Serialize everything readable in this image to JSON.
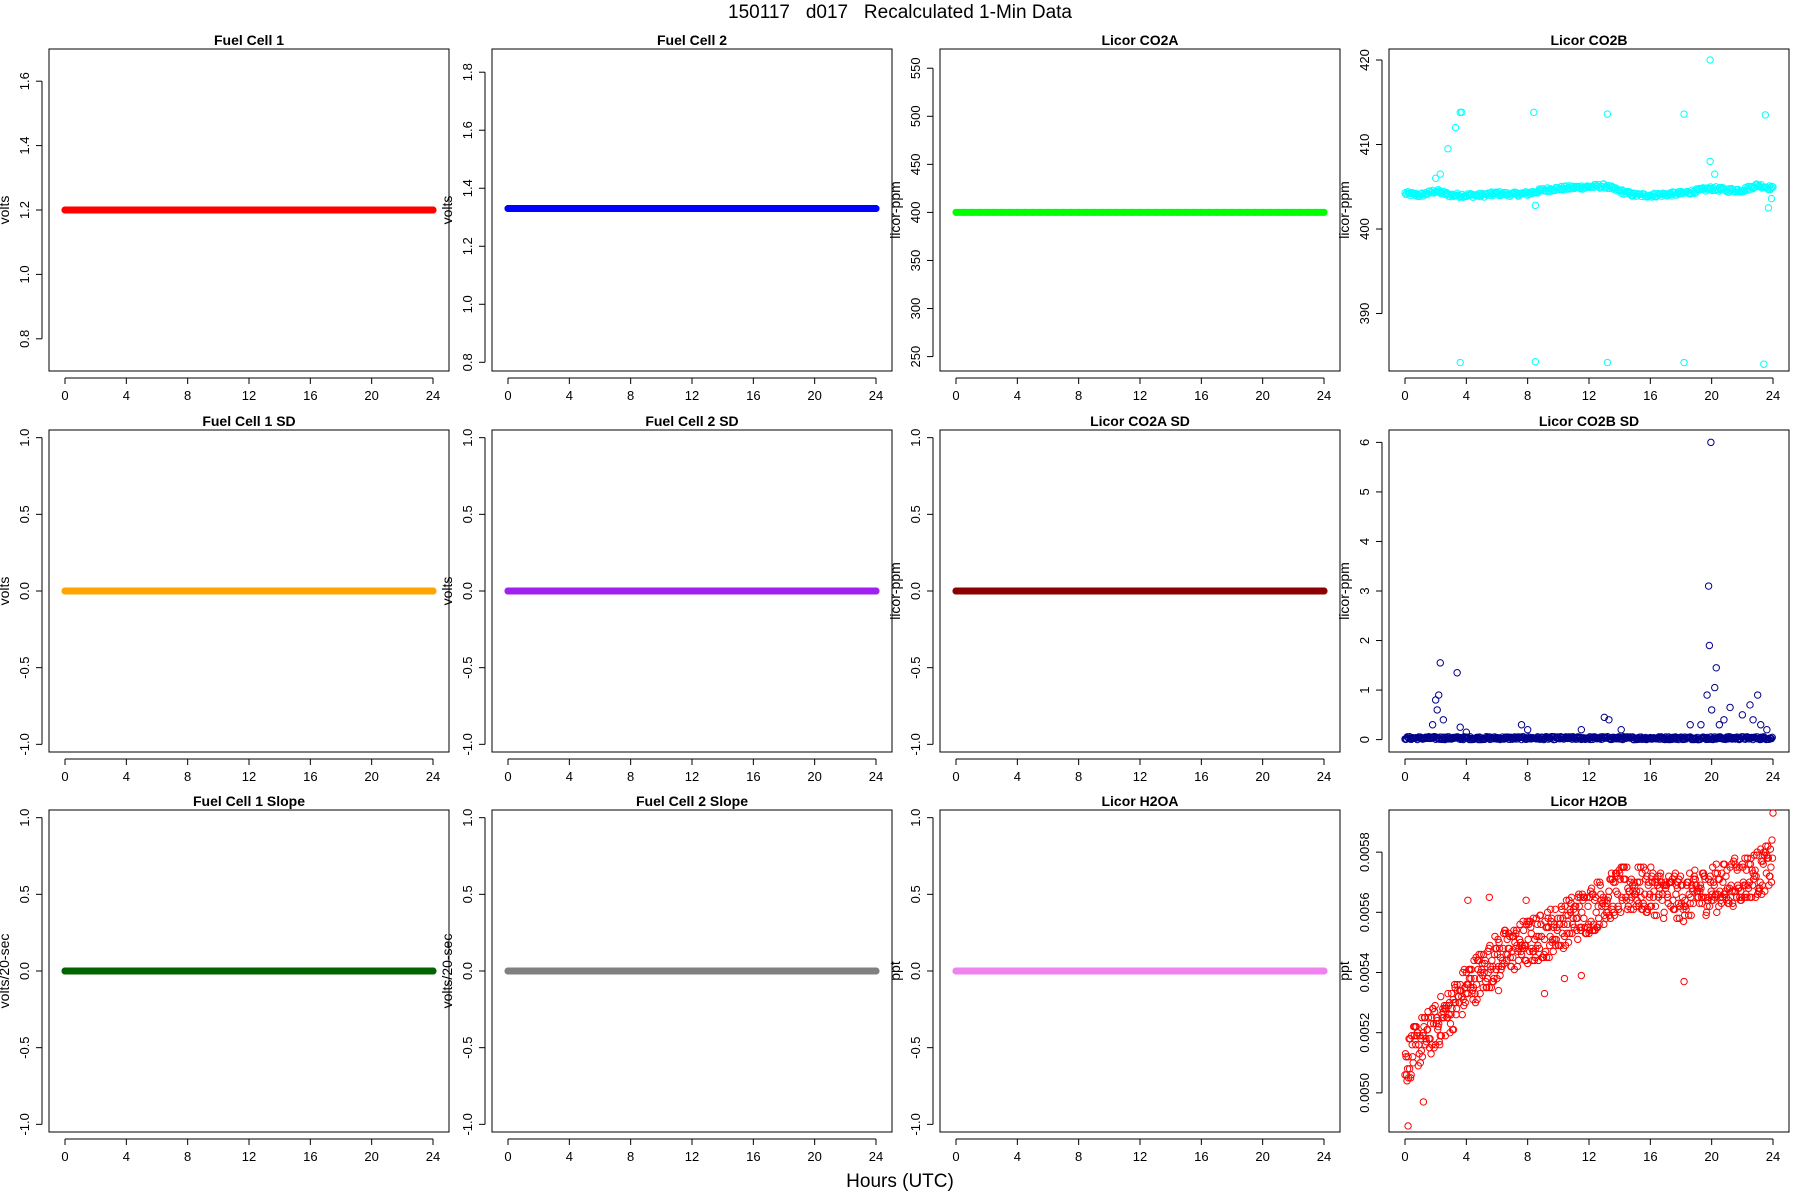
{
  "figure": {
    "title": "150117   d017   Recalculated 1-Min Data",
    "x_axis_title": "Hours (UTC)"
  },
  "chart_data": [
    {
      "type": "scatter",
      "title": "Fuel Cell 1",
      "ylabel": "volts",
      "xlim": [
        0,
        24
      ],
      "ylim": [
        0.7,
        1.7
      ],
      "yticks": [
        0.8,
        1.0,
        1.2,
        1.4,
        1.6
      ],
      "xticks": [
        0,
        4,
        8,
        12,
        16,
        20,
        24
      ],
      "color": "#ff0000",
      "marker": "filled-circle",
      "series": [
        {
          "x_range": [
            0,
            24
          ],
          "constant": 1.2
        }
      ]
    },
    {
      "type": "scatter",
      "title": "Fuel Cell 2",
      "ylabel": "volts",
      "xlim": [
        0,
        24
      ],
      "ylim": [
        0.77,
        1.88
      ],
      "yticks": [
        0.8,
        1.0,
        1.2,
        1.4,
        1.6,
        1.8
      ],
      "xticks": [
        0,
        4,
        8,
        12,
        16,
        20,
        24
      ],
      "color": "#0000ff",
      "marker": "filled-circle",
      "series": [
        {
          "x_range": [
            0,
            24
          ],
          "constant": 1.33
        }
      ]
    },
    {
      "type": "scatter",
      "title": "Licor CO2A",
      "ylabel": "licor-ppm",
      "xlim": [
        0,
        24
      ],
      "ylim": [
        235,
        570
      ],
      "yticks": [
        250,
        300,
        350,
        400,
        450,
        500,
        550
      ],
      "xticks": [
        0,
        4,
        8,
        12,
        16,
        20,
        24
      ],
      "color": "#00ff00",
      "marker": "filled-circle",
      "series": [
        {
          "x_range": [
            0,
            24
          ],
          "constant": 400
        }
      ]
    },
    {
      "type": "scatter",
      "title": "Licor CO2B",
      "ylabel": "licor-ppm",
      "xlim": [
        0,
        24
      ],
      "ylim": [
        383.2,
        421.3
      ],
      "yticks": [
        390,
        400,
        410,
        420
      ],
      "xticks": [
        0,
        4,
        8,
        12,
        16,
        20,
        24
      ],
      "color": "#00ffff",
      "marker": "open-circle",
      "series": [
        {
          "baseline": [
            [
              0,
              404.2
            ],
            [
              1,
              404.0
            ],
            [
              2,
              404.5
            ],
            [
              3,
              404.0
            ],
            [
              4,
              404.0
            ],
            [
              5,
              404.0
            ],
            [
              6,
              404.2
            ],
            [
              7,
              404.1
            ],
            [
              8,
              404.2
            ],
            [
              9,
              404.6
            ],
            [
              10,
              404.8
            ],
            [
              11,
              404.9
            ],
            [
              12,
              405.0
            ],
            [
              13,
              405.1
            ],
            [
              14,
              404.5
            ],
            [
              15,
              404.0
            ],
            [
              16,
              404.0
            ],
            [
              17,
              404.1
            ],
            [
              18,
              404.2
            ],
            [
              19,
              404.5
            ],
            [
              20,
              404.8
            ],
            [
              21,
              404.6
            ],
            [
              22,
              404.6
            ],
            [
              23,
              405.2
            ],
            [
              24,
              404.8
            ]
          ],
          "outliers": [
            [
              2.0,
              406.0
            ],
            [
              2.3,
              406.5
            ],
            [
              2.8,
              409.5
            ],
            [
              3.3,
              412.0
            ],
            [
              3.6,
              413.8
            ],
            [
              3.7,
              413.8
            ],
            [
              3.6,
              384.2
            ],
            [
              8.4,
              413.8
            ],
            [
              8.5,
              384.3
            ],
            [
              8.5,
              402.8
            ],
            [
              13.2,
              413.6
            ],
            [
              13.2,
              384.2
            ],
            [
              18.2,
              413.6
            ],
            [
              18.2,
              384.2
            ],
            [
              19.9,
              408.0
            ],
            [
              20.2,
              406.5
            ],
            [
              19.9,
              420.0
            ],
            [
              23.5,
              413.5
            ],
            [
              23.4,
              384.0
            ],
            [
              23.7,
              402.5
            ],
            [
              23.9,
              403.6
            ]
          ]
        }
      ]
    },
    {
      "type": "scatter",
      "title": "Fuel Cell 1 SD",
      "ylabel": "volts",
      "xlim": [
        0,
        24
      ],
      "ylim": [
        -1.05,
        1.05
      ],
      "yticks": [
        -1.0,
        -0.5,
        0.0,
        0.5,
        1.0
      ],
      "xticks": [
        0,
        4,
        8,
        12,
        16,
        20,
        24
      ],
      "color": "#ffa500",
      "marker": "filled-circle",
      "series": [
        {
          "x_range": [
            0,
            24
          ],
          "constant": 0.0
        }
      ]
    },
    {
      "type": "scatter",
      "title": "Fuel Cell 2 SD",
      "ylabel": "volts",
      "xlim": [
        0,
        24
      ],
      "ylim": [
        -1.05,
        1.05
      ],
      "yticks": [
        -1.0,
        -0.5,
        0.0,
        0.5,
        1.0
      ],
      "xticks": [
        0,
        4,
        8,
        12,
        16,
        20,
        24
      ],
      "color": "#a020f0",
      "marker": "filled-circle",
      "series": [
        {
          "x_range": [
            0,
            24
          ],
          "constant": 0.0
        }
      ]
    },
    {
      "type": "scatter",
      "title": "Licor CO2A SD",
      "ylabel": "licor-ppm",
      "xlim": [
        0,
        24
      ],
      "ylim": [
        -1.05,
        1.05
      ],
      "yticks": [
        -1.0,
        -0.5,
        0.0,
        0.5,
        1.0
      ],
      "xticks": [
        0,
        4,
        8,
        12,
        16,
        20,
        24
      ],
      "color": "#8b0000",
      "marker": "filled-circle",
      "series": [
        {
          "x_range": [
            0,
            24
          ],
          "constant": 0.0
        }
      ]
    },
    {
      "type": "scatter",
      "title": "Licor CO2B SD",
      "ylabel": "licor-ppm",
      "xlim": [
        0,
        24
      ],
      "ylim": [
        -0.25,
        6.25
      ],
      "yticks": [
        0,
        1,
        2,
        3,
        4,
        5,
        6
      ],
      "xticks": [
        0,
        4,
        8,
        12,
        16,
        20,
        24
      ],
      "color": "#00008b",
      "marker": "open-circle",
      "series": [
        {
          "baseline": 0.03,
          "outliers": [
            [
              1.8,
              0.3
            ],
            [
              2.0,
              0.8
            ],
            [
              2.1,
              0.6
            ],
            [
              2.2,
              0.9
            ],
            [
              2.3,
              1.55
            ],
            [
              2.5,
              0.4
            ],
            [
              3.4,
              1.35
            ],
            [
              3.6,
              0.25
            ],
            [
              4.0,
              0.15
            ],
            [
              7.6,
              0.3
            ],
            [
              8.0,
              0.2
            ],
            [
              11.5,
              0.2
            ],
            [
              13.0,
              0.45
            ],
            [
              13.3,
              0.4
            ],
            [
              14.1,
              0.2
            ],
            [
              18.6,
              0.3
            ],
            [
              19.3,
              0.3
            ],
            [
              19.7,
              0.9
            ],
            [
              19.8,
              3.1
            ],
            [
              19.85,
              1.9
            ],
            [
              19.95,
              6.0
            ],
            [
              20.0,
              0.6
            ],
            [
              20.2,
              1.05
            ],
            [
              20.3,
              1.45
            ],
            [
              20.5,
              0.3
            ],
            [
              20.8,
              0.4
            ],
            [
              21.2,
              0.65
            ],
            [
              22.0,
              0.5
            ],
            [
              22.5,
              0.7
            ],
            [
              22.7,
              0.4
            ],
            [
              23.0,
              0.9
            ],
            [
              23.2,
              0.3
            ],
            [
              23.6,
              0.2
            ]
          ]
        }
      ]
    },
    {
      "type": "scatter",
      "title": "Fuel Cell 1 Slope",
      "ylabel": "volts/20-sec",
      "xlim": [
        0,
        24
      ],
      "ylim": [
        -1.05,
        1.05
      ],
      "yticks": [
        -1.0,
        -0.5,
        0.0,
        0.5,
        1.0
      ],
      "xticks": [
        0,
        4,
        8,
        12,
        16,
        20,
        24
      ],
      "color": "#006400",
      "marker": "filled-circle",
      "series": [
        {
          "x_range": [
            0,
            24
          ],
          "constant": 0.0
        }
      ]
    },
    {
      "type": "scatter",
      "title": "Fuel Cell 2 Slope",
      "ylabel": "volts/20-sec",
      "xlim": [
        0,
        24
      ],
      "ylim": [
        -1.05,
        1.05
      ],
      "yticks": [
        -1.0,
        -0.5,
        0.0,
        0.5,
        1.0
      ],
      "xticks": [
        0,
        4,
        8,
        12,
        16,
        20,
        24
      ],
      "color": "#808080",
      "marker": "filled-circle",
      "series": [
        {
          "x_range": [
            0,
            24
          ],
          "constant": 0.0
        }
      ]
    },
    {
      "type": "scatter",
      "title": "Licor H2OA",
      "ylabel": "ppt",
      "xlim": [
        0,
        24
      ],
      "ylim": [
        -1.05,
        1.05
      ],
      "yticks": [
        -1.0,
        -0.5,
        0.0,
        0.5,
        1.0
      ],
      "xticks": [
        0,
        4,
        8,
        12,
        16,
        20,
        24
      ],
      "color": "#ee82ee",
      "marker": "filled-circle",
      "series": [
        {
          "x_range": [
            0,
            24
          ],
          "constant": 0.0
        }
      ]
    },
    {
      "type": "scatter",
      "title": "Licor H2OB",
      "ylabel": "ppt",
      "xlim": [
        0,
        24
      ],
      "ylim": [
        0.00487,
        0.00594
      ],
      "yticks": [
        0.005,
        0.0052,
        0.0054,
        0.0056,
        0.0058
      ],
      "xticks": [
        0,
        4,
        8,
        12,
        16,
        20,
        24
      ],
      "color": "#ff0000",
      "marker": "open-circle",
      "series": [
        {
          "trend": [
            [
              0,
              0.0051
            ],
            [
              1,
              0.00517
            ],
            [
              2,
              0.00522
            ],
            [
              3,
              0.00528
            ],
            [
              4,
              0.00535
            ],
            [
              5,
              0.0054
            ],
            [
              6,
              0.00545
            ],
            [
              7,
              0.00548
            ],
            [
              8,
              0.0055
            ],
            [
              9,
              0.00552
            ],
            [
              10,
              0.00555
            ],
            [
              11,
              0.00558
            ],
            [
              12,
              0.00561
            ],
            [
              13,
              0.00564
            ],
            [
              14,
              0.00567
            ],
            [
              15,
              0.00568
            ],
            [
              16,
              0.00567
            ],
            [
              17,
              0.00566
            ],
            [
              18,
              0.00565
            ],
            [
              19,
              0.00566
            ],
            [
              20,
              0.00568
            ],
            [
              21,
              0.00569
            ],
            [
              22,
              0.00571
            ],
            [
              23,
              0.00573
            ],
            [
              24,
              0.00576
            ]
          ],
          "spread": 8e-05,
          "quantum": 1e-05,
          "outliers": [
            [
              0.2,
              0.00489
            ],
            [
              1.2,
              0.00497
            ],
            [
              4.1,
              0.00564
            ],
            [
              5.5,
              0.00565
            ],
            [
              6.1,
              0.00534
            ],
            [
              7.9,
              0.00564
            ],
            [
              9.1,
              0.00533
            ],
            [
              10.4,
              0.00538
            ],
            [
              11.5,
              0.00539
            ],
            [
              18.2,
              0.00537
            ],
            [
              24.0,
              0.00593
            ]
          ]
        }
      ]
    }
  ]
}
